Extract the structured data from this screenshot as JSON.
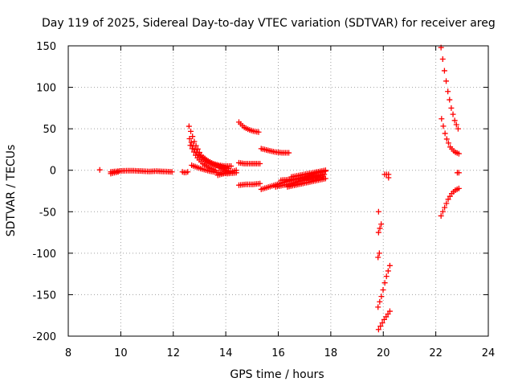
{
  "chart_data": {
    "type": "scatter",
    "title": "Day 119 of 2025, Sidereal Day-to-day VTEC variation (SDTVAR) for receiver areg",
    "xlabel": "GPS time / hours",
    "ylabel": "SDTVAR / TECUs",
    "xlim": [
      8,
      24
    ],
    "ylim": [
      -200,
      150
    ],
    "xticks": [
      "8",
      "10",
      "12",
      "14",
      "16",
      "18",
      "20",
      "22",
      "24"
    ],
    "yticks": [
      "150",
      "100",
      "50",
      "0",
      "-50",
      "-100",
      "-150",
      "-200"
    ],
    "grid": true,
    "marker": "+",
    "color": "#ff0000",
    "series": [
      {
        "name": "SDTVAR",
        "segments": [
          {
            "x0": 9.2,
            "x1": 9.2,
            "y": [
              0.5
            ]
          },
          {
            "x0": 9.62,
            "x1": 11.95,
            "y": [
              -2,
              -1,
              -0.5,
              -0.5,
              -1,
              -1.5,
              -1,
              -1.5,
              -2
            ]
          },
          {
            "x0": 9.62,
            "x1": 9.9,
            "y": [
              -4,
              -2
            ]
          },
          {
            "x0": 12.35,
            "x1": 12.55,
            "y": [
              -2,
              -3,
              -2
            ]
          },
          {
            "x0": 12.6,
            "x1": 14.2,
            "y": [
              53,
              32,
              18,
              12,
              8,
              6,
              5,
              5
            ]
          },
          {
            "x0": 12.62,
            "x1": 14.1,
            "y": [
              38,
              22,
              14,
              9,
              6,
              4,
              2
            ]
          },
          {
            "x0": 12.65,
            "x1": 13.6,
            "y": [
              30,
              16,
              8,
              3,
              0
            ]
          },
          {
            "x0": 12.7,
            "x1": 14.4,
            "y": [
              6,
              2,
              -1,
              -3,
              -4,
              -3
            ]
          },
          {
            "x0": 13.7,
            "x1": 14.4,
            "y": [
              -6,
              -4,
              -2,
              0
            ]
          },
          {
            "x0": 13.75,
            "x1": 14.1,
            "y": [
              3,
              -1
            ]
          },
          {
            "x0": 14.5,
            "x1": 15.25,
            "y": [
              58,
              52,
              49,
              47,
              46
            ]
          },
          {
            "x0": 14.5,
            "x1": 15.3,
            "y": [
              9,
              8,
              8,
              8,
              8
            ]
          },
          {
            "x0": 14.5,
            "x1": 15.3,
            "y": [
              -18,
              -17,
              -17,
              -16
            ]
          },
          {
            "x0": 15.35,
            "x1": 16.4,
            "y": [
              26,
              24,
              22,
              21,
              21
            ]
          },
          {
            "x0": 15.35,
            "x1": 17.8,
            "y": [
              -23,
              -20,
              -17,
              -14,
              -11,
              -9,
              -6,
              -3,
              -1
            ]
          },
          {
            "x0": 15.9,
            "x1": 17.75,
            "y": [
              -20,
              -18,
              -16,
              -13,
              -10,
              -8,
              -5
            ]
          },
          {
            "x0": 16.1,
            "x1": 17.7,
            "y": [
              -12,
              -11,
              -10,
              -9,
              -8
            ]
          },
          {
            "x0": 16.35,
            "x1": 17.8,
            "y": [
              -20,
              -18,
              -16,
              -14,
              -12,
              -10
            ]
          },
          {
            "x0": 16.5,
            "x1": 17.8,
            "y": [
              -8,
              -6,
              -4,
              -2,
              0
            ]
          },
          {
            "x0": 19.82,
            "x1": 19.82,
            "y": [
              -50
            ]
          },
          {
            "x0": 19.82,
            "x1": 19.92,
            "y": [
              -75,
              -70,
              -65
            ]
          },
          {
            "x0": 19.8,
            "x1": 19.85,
            "y": [
              -105,
              -100
            ]
          },
          {
            "x0": 19.8,
            "x1": 20.25,
            "y": [
              -165,
              -150,
              -130,
              -115
            ]
          },
          {
            "x0": 19.82,
            "x1": 20.25,
            "y": [
              -192,
              -180,
              -170
            ]
          },
          {
            "x0": 20.05,
            "x1": 20.2,
            "y": [
              -5,
              -5
            ]
          },
          {
            "x0": 20.2,
            "x1": 20.2,
            "y": [
              -9
            ]
          },
          {
            "x0": 22.2,
            "x1": 22.85,
            "y": [
              148,
              120,
              95,
              75,
              60,
              50
            ]
          },
          {
            "x0": 22.22,
            "x1": 22.88,
            "y": [
              62,
              40,
              28,
              22,
              20
            ]
          },
          {
            "x0": 22.82,
            "x1": 22.88,
            "y": [
              -3,
              -3
            ]
          },
          {
            "x0": 22.2,
            "x1": 22.88,
            "y": [
              -55,
              -45,
              -35,
              -28,
              -24,
              -22
            ]
          }
        ]
      }
    ]
  }
}
